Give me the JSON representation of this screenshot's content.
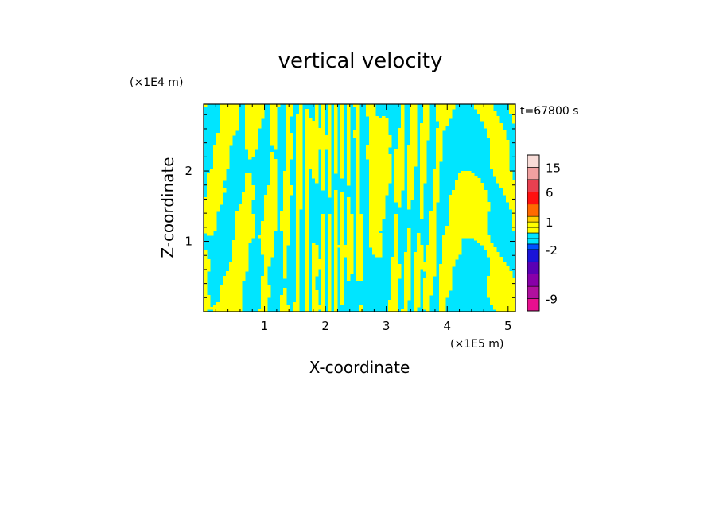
{
  "chart_data": {
    "type": "heatmap",
    "title": "vertical velocity",
    "xlabel": "X-coordinate",
    "ylabel": "Z-coordinate",
    "x_unit": "(×1E5 m)",
    "y_unit": "(×1E4 m)",
    "time_label": "t=67800 s",
    "xlim": [
      0,
      5.12
    ],
    "ylim": [
      0,
      2.95
    ],
    "xticks": [
      "1",
      "2",
      "3",
      "4",
      "5"
    ],
    "xtick_values": [
      1,
      2,
      3,
      4,
      5
    ],
    "yticks": [
      "1",
      "2"
    ],
    "ytick_values": [
      1,
      2
    ],
    "dominant_colors": {
      "positive_band": "#ffff00",
      "negative_band": "#00e5ff"
    },
    "colorbar": {
      "tick_labels": [
        "15",
        "6",
        "1",
        "-2",
        "-9"
      ],
      "levels": [
        -12,
        -9,
        -6,
        -4,
        -3,
        -2,
        -1,
        -0.5,
        0,
        0.5,
        1,
        2,
        4,
        6,
        10,
        15,
        20
      ],
      "colors": [
        "#e8108f",
        "#b0109e",
        "#8800a8",
        "#5a00b4",
        "#1a14d8",
        "#0050ff",
        "#00e5ff",
        "#00e5ff",
        "#ffff00",
        "#ffff00",
        "#ffd000",
        "#ff6a00",
        "#ff1010",
        "#e84050",
        "#f0a0a0",
        "#f8dcd8"
      ]
    }
  }
}
